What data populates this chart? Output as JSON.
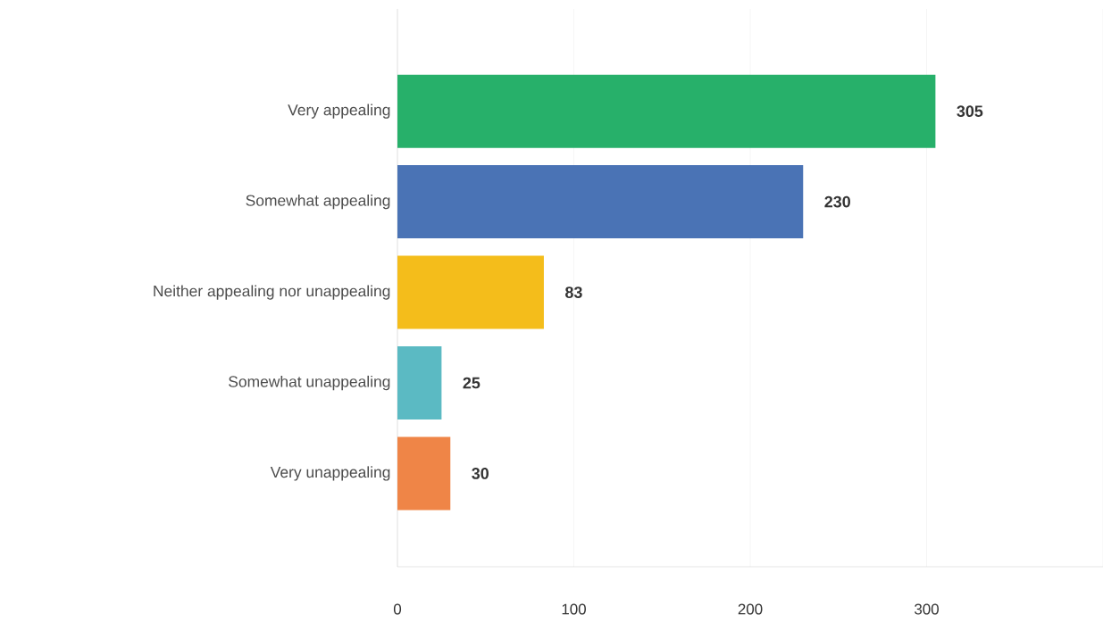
{
  "chart_data": {
    "type": "bar",
    "orientation": "horizontal",
    "categories": [
      "Very appealing",
      "Somewhat appealing",
      "Neither appealing nor unappealing",
      "Somewhat unappealing",
      "Very unappealing"
    ],
    "values": [
      305,
      230,
      83,
      25,
      30
    ],
    "colors": [
      "#27b06a",
      "#4a73b5",
      "#f4bd1b",
      "#5bbac3",
      "#ef8547"
    ],
    "xlim": [
      0,
      400
    ],
    "xticks": [
      0,
      100,
      200,
      300,
      {
        "value": 400,
        "label": null
      }
    ],
    "grid": "x",
    "data_labels": true
  }
}
